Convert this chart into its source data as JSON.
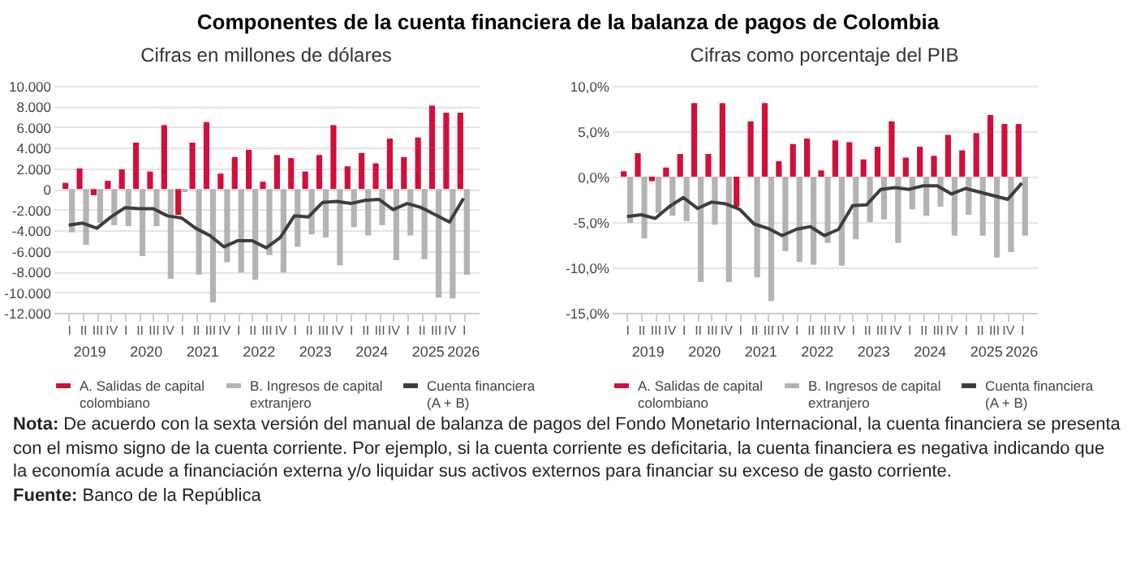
{
  "chart_data": [
    {
      "type": "bar",
      "title": "Componentes de la cuenta financiera de la balanza de pagos de Colombia",
      "subtitle": "Cifras en millones de dólares",
      "categories": [
        "I",
        "II",
        "III",
        "IV",
        "I",
        "II",
        "III",
        "IV",
        "I",
        "II",
        "III",
        "IV",
        "I",
        "II",
        "III",
        "IV",
        "I",
        "II",
        "III",
        "IV",
        "I",
        "II",
        "III",
        "IV",
        "I",
        "II",
        "III",
        "IV",
        "I"
      ],
      "annotations": [
        "2019",
        "2020",
        "2021",
        "2022",
        "2023",
        "2024",
        "2025",
        "2026"
      ],
      "series": [
        {
          "name": "A. Salidas de capital colombiano",
          "color": "#d0103a",
          "values": [
            600,
            2000,
            -600,
            800,
            1900,
            4500,
            1700,
            6200,
            -2500,
            4500,
            6500,
            1500,
            3100,
            3800,
            700,
            3300,
            3000,
            1700,
            3300,
            6200,
            2200,
            3500,
            2500,
            4900,
            3100,
            5000,
            8100,
            7400,
            7400
          ]
        },
        {
          "name": "B. Ingresos de capital extranjero",
          "color": "#b3b3b3",
          "values": [
            -4200,
            -5400,
            -3300,
            -3500,
            -3600,
            -6500,
            -3600,
            -8700,
            -300,
            -8300,
            -11000,
            -7100,
            -8100,
            -8800,
            -6400,
            -8100,
            -5600,
            -4400,
            -4700,
            -7400,
            -3700,
            -4500,
            -3500,
            -6900,
            -4500,
            -6800,
            -10500,
            -10600,
            -8300
          ]
        },
        {
          "name": "Cuenta financiera (A + B)",
          "type": "line",
          "color": "#3d3d3d",
          "values": [
            -3500,
            -3300,
            -3800,
            -2700,
            -1800,
            -1900,
            -1900,
            -2600,
            -2800,
            -3800,
            -4500,
            -5600,
            -5000,
            -5000,
            -5700,
            -4700,
            -2600,
            -2700,
            -1300,
            -1200,
            -1400,
            -1100,
            -1000,
            -2000,
            -1400,
            -1800,
            -2500,
            -3200,
            -900
          ]
        }
      ],
      "ylim": [
        -12000,
        10000
      ],
      "yticks": [
        {
          "value": -12000,
          "label": "-12.000"
        },
        {
          "value": -10000,
          "label": "-10.000"
        },
        {
          "value": -8000,
          "label": "-8.000"
        },
        {
          "value": -6000,
          "label": "-6.000"
        },
        {
          "value": -4000,
          "label": "-4.000"
        },
        {
          "value": -2000,
          "label": "-2.000"
        },
        0,
        {
          "value": 2000,
          "label": "2.000"
        },
        {
          "value": 4000,
          "label": "4.000"
        },
        {
          "value": 6000,
          "label": "6.000"
        },
        {
          "value": 8000,
          "label": "8.000"
        },
        {
          "value": 10000,
          "label": "10.000"
        }
      ],
      "grid": "y",
      "legend": "bottom",
      "marker": "none",
      "line_style": "solid"
    },
    {
      "type": "bar",
      "subtitle": "Cifras como porcentaje del PIB",
      "categories": [
        "I",
        "II",
        "III",
        "IV",
        "I",
        "II",
        "III",
        "IV",
        "I",
        "II",
        "III",
        "IV",
        "I",
        "II",
        "III",
        "IV",
        "I",
        "II",
        "III",
        "IV",
        "I",
        "II",
        "III",
        "IV",
        "I",
        "II",
        "III",
        "IV",
        "I"
      ],
      "annotations": [
        "2019",
        "2020",
        "2021",
        "2022",
        "2023",
        "2024",
        "2025",
        "2026"
      ],
      "series": [
        {
          "name": "A. Salidas de capital colombiano",
          "color": "#d0103a",
          "values": [
            0.6,
            2.6,
            -0.5,
            1.0,
            2.5,
            8.1,
            2.5,
            8.1,
            -3.3,
            6.1,
            8.1,
            1.7,
            3.6,
            4.2,
            0.7,
            4.0,
            3.8,
            1.9,
            3.3,
            6.1,
            2.1,
            3.3,
            2.3,
            4.6,
            2.9,
            4.8,
            6.8,
            5.8,
            5.8
          ]
        },
        {
          "name": "B. Ingresos de capital extranjero",
          "color": "#b3b3b3",
          "values": [
            -5.1,
            -6.8,
            -4.0,
            -4.3,
            -4.9,
            -11.6,
            -5.3,
            -11.6,
            null,
            -11.1,
            -13.7,
            -8.2,
            -9.4,
            -9.7,
            -7.3,
            -9.8,
            -6.9,
            -5.0,
            -4.7,
            -7.3,
            -3.6,
            -4.3,
            -3.3,
            -6.5,
            -4.2,
            -6.5,
            -8.9,
            -8.3,
            -6.5
          ]
        },
        {
          "name": "Cuenta financiera (A + B)",
          "type": "line",
          "color": "#3d3d3d",
          "values": [
            -4.4,
            -4.2,
            -4.6,
            -3.3,
            -2.3,
            -3.5,
            -2.8,
            -3.0,
            -3.6,
            -5.2,
            -5.7,
            -6.5,
            -5.8,
            -5.5,
            -6.5,
            -5.8,
            -3.2,
            -3.1,
            -1.4,
            -1.2,
            -1.4,
            -1.0,
            -1.0,
            -1.9,
            -1.3,
            -1.7,
            -2.1,
            -2.5,
            -0.7
          ]
        }
      ],
      "ylim": [
        -15,
        10
      ],
      "yticks": [
        {
          "value": -15,
          "label": "-15,0%"
        },
        {
          "value": -10,
          "label": "-10,0%"
        },
        {
          "value": -5,
          "label": "-5,0%"
        },
        {
          "value": 0,
          "label": "0,0%"
        },
        {
          "value": 5,
          "label": "5,0%"
        },
        {
          "value": 10,
          "label": "10,0%"
        }
      ],
      "grid": "y",
      "legend": "bottom",
      "marker": "none",
      "line_style": "solid"
    },
    {
      "type": "other",
      "annotations": [
        "Nota: De acuerdo con la sexta versión del manual de balanza de pagos del Fondo Monetario Internacional, la cuenta financiera se presenta con el mismo signo de la cuenta corriente. Por ejemplo, si la cuenta corriente es deficitaria, la cuenta financiera es negativa indicando que la economía acude a financiación externa y/o liquidar sus activos externos para financiar su exceso de gasto corriente.",
        "Fuente: Banco de la República"
      ]
    }
  ]
}
